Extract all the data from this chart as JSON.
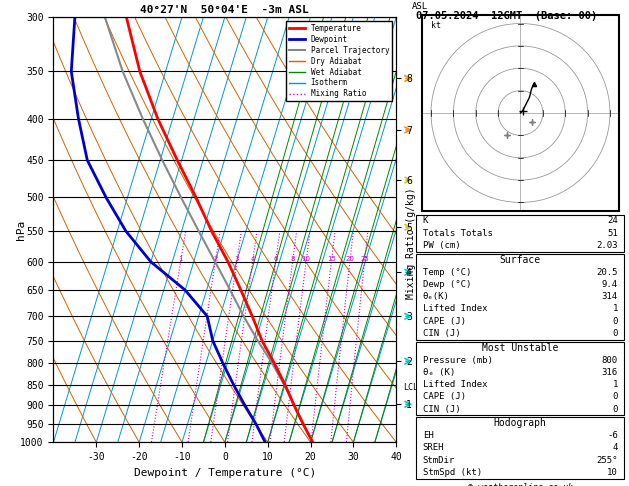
{
  "title_left": "40°27'N  50°04'E  -3m ASL",
  "title_right": "07.05.2024  12GMT  (Base: 00)",
  "xlabel": "Dewpoint / Temperature (°C)",
  "pressure_levels": [
    300,
    350,
    400,
    450,
    500,
    550,
    600,
    650,
    700,
    750,
    800,
    850,
    900,
    950,
    1000
  ],
  "temp_ticks": [
    -30,
    -20,
    -10,
    0,
    10,
    20,
    30,
    40
  ],
  "isotherm_temps": [
    -40,
    -35,
    -30,
    -25,
    -20,
    -15,
    -10,
    -5,
    0,
    5,
    10,
    15,
    20,
    25,
    30,
    35,
    40,
    45
  ],
  "dry_adiabat_thetas": [
    -30,
    -20,
    -10,
    0,
    10,
    20,
    30,
    40,
    50,
    60,
    70,
    80
  ],
  "wet_adiabat_temps": [
    -5,
    0,
    5,
    10,
    15,
    20,
    25,
    30,
    35
  ],
  "mixing_ratio_values": [
    1,
    2,
    3,
    4,
    6,
    8,
    10,
    15,
    20,
    25
  ],
  "km_ticks": [
    1,
    2,
    3,
    4,
    5,
    6,
    7,
    8
  ],
  "km_tick_pressures": [
    898,
    795,
    700,
    618,
    544,
    476,
    413,
    357
  ],
  "lcl_pressure": 857,
  "temp_profile_p": [
    1000,
    950,
    900,
    850,
    800,
    750,
    700,
    650,
    600,
    550,
    500,
    450,
    400,
    350,
    300
  ],
  "temp_profile_t": [
    20.5,
    17.0,
    13.5,
    10.0,
    6.0,
    1.5,
    -2.5,
    -7.0,
    -12.0,
    -18.0,
    -24.0,
    -31.0,
    -38.5,
    -46.0,
    -53.0
  ],
  "dewp_profile_p": [
    1000,
    950,
    900,
    850,
    800,
    750,
    700,
    650,
    600,
    550,
    500,
    450,
    400,
    350,
    300
  ],
  "dewp_profile_t": [
    9.4,
    6.0,
    2.0,
    -2.0,
    -6.0,
    -10.0,
    -13.0,
    -20.0,
    -30.0,
    -38.0,
    -45.0,
    -52.0,
    -57.0,
    -62.0,
    -65.0
  ],
  "parcel_profile_p": [
    1000,
    950,
    900,
    857,
    800,
    750,
    700,
    650,
    600,
    550,
    500,
    450,
    400,
    350,
    300
  ],
  "parcel_profile_t": [
    20.5,
    17.0,
    13.5,
    10.4,
    5.5,
    0.5,
    -4.5,
    -9.5,
    -15.0,
    -21.0,
    -27.5,
    -34.5,
    -42.0,
    -50.0,
    -58.0
  ],
  "colors": {
    "temperature": "#FF0000",
    "dewpoint": "#0000CC",
    "parcel": "#888888",
    "dry_adiabat": "#CC6600",
    "wet_adiabat": "#008800",
    "isotherm": "#0099CC",
    "mixing_ratio": "#CC00CC",
    "background": "#FFFFFF",
    "grid": "#000000"
  },
  "legend_entries": [
    [
      "Temperature",
      "#FF0000",
      "solid",
      2.0
    ],
    [
      "Dewpoint",
      "#0000CC",
      "solid",
      2.0
    ],
    [
      "Parcel Trajectory",
      "#888888",
      "solid",
      1.5
    ],
    [
      "Dry Adiabat",
      "#CC6600",
      "solid",
      1.0
    ],
    [
      "Wet Adiabat",
      "#008800",
      "solid",
      1.0
    ],
    [
      "Isotherm",
      "#0099CC",
      "solid",
      1.0
    ],
    [
      "Mixing Ratio",
      "#CC00CC",
      "dotted",
      1.0
    ]
  ],
  "wind_barb_colors": [
    "#00CCCC",
    "#00CCCC",
    "#00CCCC",
    "#00CCCC",
    "#CCCC00",
    "#CCCC00",
    "#FF8C00",
    "#FF8C00"
  ],
  "info_rows_top": [
    [
      "K",
      "24"
    ],
    [
      "Totals Totals",
      "51"
    ],
    [
      "PW (cm)",
      "2.03"
    ]
  ],
  "info_surface_rows": [
    [
      "Temp (°C)",
      "20.5"
    ],
    [
      "Dewp (°C)",
      "9.4"
    ],
    [
      "θₑ(K)",
      "314"
    ],
    [
      "Lifted Index",
      "1"
    ],
    [
      "CAPE (J)",
      "0"
    ],
    [
      "CIN (J)",
      "0"
    ]
  ],
  "info_mu_rows": [
    [
      "Pressure (mb)",
      "800"
    ],
    [
      "θₑ (K)",
      "316"
    ],
    [
      "Lifted Index",
      "1"
    ],
    [
      "CAPE (J)",
      "0"
    ],
    [
      "CIN (J)",
      "0"
    ]
  ],
  "info_hodo_rows": [
    [
      "EH",
      "-6"
    ],
    [
      "SREH",
      "4"
    ],
    [
      "StmDir",
      "255°"
    ],
    [
      "StmSpd (kt)",
      "10"
    ]
  ]
}
